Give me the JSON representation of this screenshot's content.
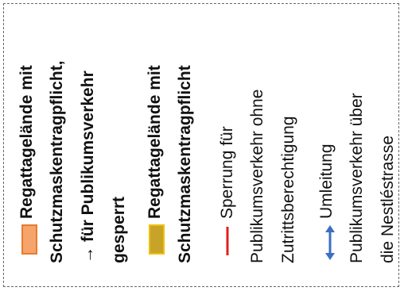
{
  "legend": {
    "item1": {
      "lines": [
        "Regattagelände mit",
        "Schutzmaskentragpflicht,",
        "→ für Publikumsverkehr",
        "gesperrt"
      ],
      "swatch_color": "#f5a46c",
      "swatch_border": "#e97b2f"
    },
    "item2": {
      "lines": [
        "Regattagelände mit",
        "Schutzmaskentragpflicht"
      ],
      "swatch_color": "#c7a32a",
      "swatch_border": "#f0c000"
    },
    "item3": {
      "lines": [
        "Sperrung für",
        "Publikumsverkehr ohne",
        "Zutrittsberechtigung"
      ],
      "line_color": "#e0201b"
    },
    "item4": {
      "lines": [
        "Umleitung",
        "Publikumsverkehr über",
        "die Nestléstrasse"
      ],
      "arrow_color": "#3a6fc4"
    }
  }
}
